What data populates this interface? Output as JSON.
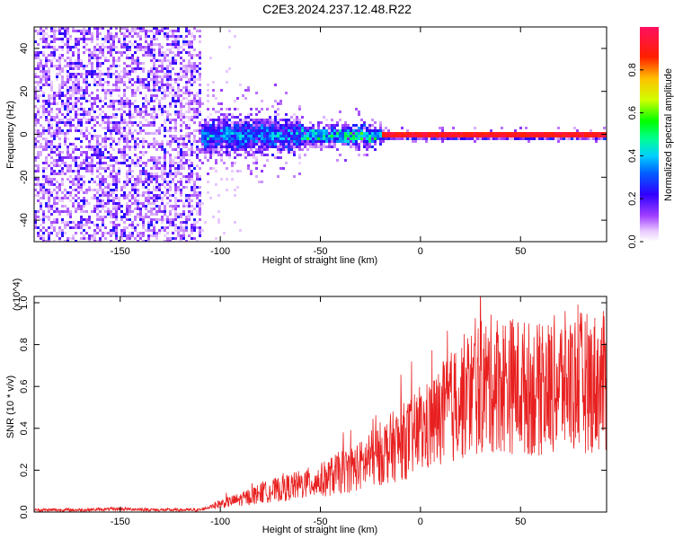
{
  "title": "C2E3.2024.237.12.48.R22",
  "colors": {
    "snr_line": "#e82020",
    "spectrum_core": "#ff2020",
    "spectrum_low": "#6a00ff",
    "axis": "#000000",
    "background": "#ffffff"
  },
  "chart_data": [
    {
      "type": "heatmap",
      "title": "C2E3.2024.237.12.48.R22",
      "xlabel": "Height of straight line (km)",
      "ylabel": "Frequency (Hz)",
      "xlim": [
        -193,
        93
      ],
      "ylim": [
        -50,
        50
      ],
      "x_ticks": [
        -150,
        -100,
        -50,
        0,
        50
      ],
      "y_ticks": [
        -40,
        -20,
        0,
        20,
        40
      ],
      "colorbar": {
        "label": "Normalized spectral amplitude",
        "range": [
          0.0,
          1.0
        ],
        "ticks": [
          0.0,
          0.2,
          0.4,
          0.6,
          0.8
        ],
        "tick_labels": [
          "0.0",
          "0.2",
          "0.4",
          "0.6",
          "0.8"
        ],
        "colormap": "rainbow"
      },
      "features": [
        {
          "x_range": [
            -193,
            -110
          ],
          "pattern": "broadband noise",
          "amplitude": [
            0.05,
            0.25
          ]
        },
        {
          "x_range": [
            -110,
            -60
          ],
          "pattern": "wide band around 0 Hz",
          "band_halfwidth_hz": 10,
          "amplitude": [
            0.2,
            0.5
          ]
        },
        {
          "x_range": [
            -60,
            -20
          ],
          "pattern": "narrowing band around 0 Hz",
          "band_halfwidth_hz": 5,
          "amplitude": [
            0.3,
            0.7
          ]
        },
        {
          "x_range": [
            -20,
            93
          ],
          "pattern": "narrow strong line at 0 Hz",
          "band_halfwidth_hz": 2,
          "amplitude": [
            0.8,
            1.0
          ]
        }
      ]
    },
    {
      "type": "line",
      "xlabel": "Height of straight line (km)",
      "ylabel": "SNR (10 * v/v)",
      "y_multiplier": "(x10^4)",
      "xlim": [
        -193,
        93
      ],
      "ylim": [
        0.0,
        1.03
      ],
      "x_ticks": [
        -150,
        -100,
        -50,
        0,
        50
      ],
      "y_ticks": [
        0.0,
        0.2,
        0.4,
        0.6,
        0.8,
        1.0
      ],
      "y_tick_labels": [
        "0.0",
        "0.2",
        "0.4",
        "0.6",
        "0.8",
        "1.0"
      ],
      "series": [
        {
          "x": [
            -193,
            -170,
            -150,
            -130,
            -110,
            -100,
            -90,
            -80,
            -70,
            -60,
            -50,
            -40,
            -30,
            -20,
            -10,
            0,
            10,
            20,
            30,
            40,
            50,
            60,
            70,
            80,
            93
          ],
          "y": [
            0.01,
            0.01,
            0.015,
            0.01,
            0.01,
            0.04,
            0.06,
            0.09,
            0.11,
            0.13,
            0.15,
            0.19,
            0.22,
            0.28,
            0.33,
            0.38,
            0.45,
            0.54,
            0.6,
            0.62,
            0.6,
            0.58,
            0.62,
            0.62,
            0.62
          ]
        }
      ]
    }
  ]
}
